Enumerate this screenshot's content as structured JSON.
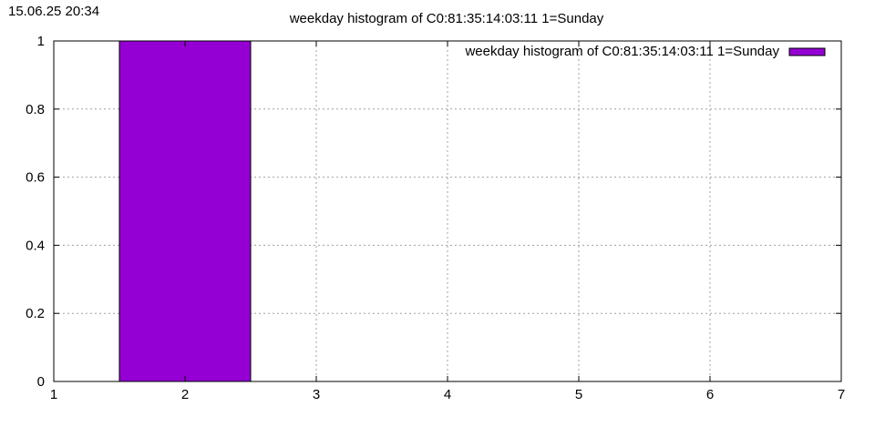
{
  "timestamp": "15.06.25 20:34",
  "colors": {
    "bar": "#9400d3",
    "grid": "#a0a0a0",
    "axis": "#000000"
  },
  "chart_data": {
    "type": "bar",
    "title": "weekday histogram of C0:81:35:14:03:11 1=Sunday",
    "xlabel": "",
    "ylabel": "",
    "x": [
      2
    ],
    "series": [
      {
        "name": "weekday histogram of C0:81:35:14:03:11 1=Sunday",
        "values": [
          1
        ]
      }
    ],
    "xlim": [
      1,
      7
    ],
    "ylim": [
      0,
      1
    ],
    "xticks": [
      1,
      2,
      3,
      4,
      5,
      6,
      7
    ],
    "yticks": [
      0,
      0.2,
      0.4,
      0.6,
      0.8,
      1
    ],
    "ytick_labels": [
      "0",
      "0.2",
      "0.4",
      "0.6",
      "0.8",
      "1"
    ],
    "bar_width": 1,
    "grid": true,
    "legend_position": "top-right"
  }
}
